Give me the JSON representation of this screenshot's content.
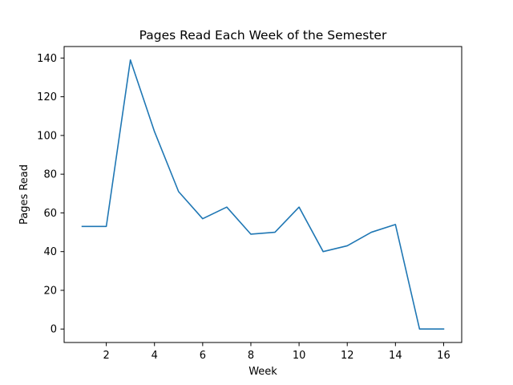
{
  "chart_data": {
    "type": "line",
    "title": "Pages Read Each Week of the Semester",
    "xlabel": "Week",
    "ylabel": "Pages Read",
    "x": [
      1,
      2,
      3,
      4,
      5,
      6,
      7,
      8,
      9,
      10,
      11,
      12,
      13,
      14,
      15,
      16
    ],
    "series": [
      {
        "values": [
          53,
          53,
          139,
          102,
          71,
          57,
          63,
          49,
          50,
          63,
          40,
          43,
          50,
          54,
          0,
          0
        ],
        "color": "#1f77b4"
      }
    ],
    "xlim": [
      0.25,
      16.75
    ],
    "ylim": [
      -6.95,
      145.95
    ],
    "xticks": [
      2,
      4,
      6,
      8,
      10,
      12,
      14,
      16
    ],
    "yticks": [
      0,
      20,
      40,
      60,
      80,
      100,
      120,
      140
    ],
    "grid": false,
    "legend": "none"
  }
}
